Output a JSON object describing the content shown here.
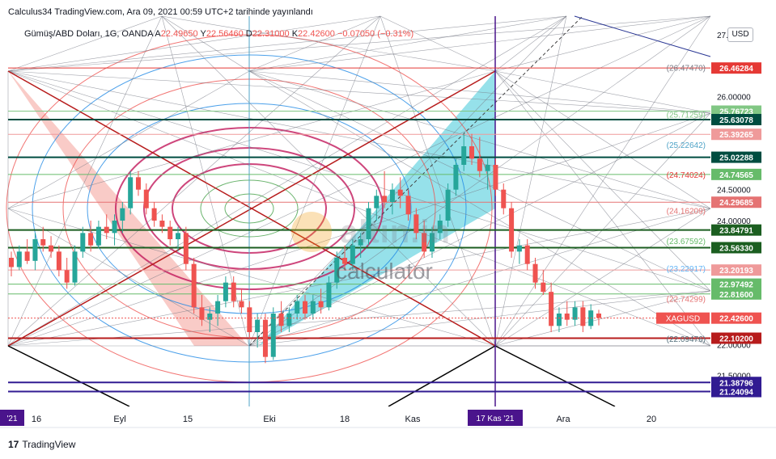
{
  "header": {
    "published": "Calculus34 TradingView.com, Ara 09, 2021 00:59 UTC+2 tarihinde yayınlandı"
  },
  "symbol_bar": {
    "name": "Gümüş/ABD Doları, 1G, OANDA",
    "a_label": "A",
    "a_value": "22.49650",
    "y_label": "Y",
    "y_value": "22.56460",
    "d_label": "D",
    "d_value": "22.31000",
    "k_label": "K",
    "k_value": "22.42600",
    "change": "−0.07050 (−0.31%)"
  },
  "currency_button": "USD",
  "watermark": {
    "brand": "altın.in",
    "sub": "calculator"
  },
  "footer": {
    "brand": "TradingView",
    "logo": "17"
  },
  "colors": {
    "up": "#26a69a",
    "down": "#ef5350",
    "purple": "#4a148c",
    "teal_fill": "#2ec4d6",
    "red_fill": "#f28b82"
  },
  "chart_data": {
    "type": "candlestick",
    "ylim": [
      21.0,
      27.3
    ],
    "y_ticks": [
      "27.00000",
      "26.00000",
      "24.50000",
      "24.00000",
      "22.00000",
      "21.50000"
    ],
    "x_ticks": [
      "16",
      "Eyl",
      "15",
      "Eki",
      "18",
      "Kas",
      "Ara",
      "20"
    ],
    "x_highlight_left": "'21",
    "x_highlight": "17 Kas '21",
    "current": {
      "label": "XAGUSD",
      "value": "22.42600"
    },
    "price_labels": [
      {
        "value": "26.46284",
        "color": "#e53935"
      },
      {
        "value": "25.76723",
        "color": "#81c784"
      },
      {
        "value": "25.63078",
        "color": "#004d40"
      },
      {
        "value": "25.39265",
        "color": "#ef9a9a"
      },
      {
        "value": "25.02288",
        "color": "#004d40"
      },
      {
        "value": "24.74565",
        "color": "#66bb6a"
      },
      {
        "value": "24.29685",
        "color": "#e57373"
      },
      {
        "value": "23.84791",
        "color": "#1b5e20"
      },
      {
        "value": "23.56330",
        "color": "#1b5e20"
      },
      {
        "value": "23.20193",
        "color": "#ef9a9a"
      },
      {
        "value": "22.97492",
        "color": "#66bb6a"
      },
      {
        "value": "22.81600",
        "color": "#66bb6a"
      },
      {
        "value": "22.10200",
        "color": "#b71c1c"
      },
      {
        "value": "21.38796",
        "color": "#311b92"
      },
      {
        "value": "21.24094",
        "color": "#311b92"
      }
    ],
    "fib_labels": [
      {
        "value": "(26.47470)",
        "color": "#787b86"
      },
      {
        "value": "(25.71259)",
        "color": "#81c784"
      },
      {
        "value": "(25.22642)",
        "color": "#4fa3c7"
      },
      {
        "value": "(24.74024)",
        "color": "#e53935"
      },
      {
        "value": "(24.16209)",
        "color": "#e57373"
      },
      {
        "value": "(23.67592)",
        "color": "#66bb6a"
      },
      {
        "value": "(23.22917)",
        "color": "#64b5f6"
      },
      {
        "value": "(22.74299)",
        "color": "#e57373"
      },
      {
        "value": "(22.09476)",
        "color": "#546e7a"
      }
    ],
    "candles": [
      [
        23.4,
        23.5,
        23.1,
        23.25
      ],
      [
        23.25,
        23.6,
        23.2,
        23.5
      ],
      [
        23.5,
        23.7,
        23.3,
        23.35
      ],
      [
        23.35,
        23.8,
        23.2,
        23.7
      ],
      [
        23.7,
        23.9,
        23.5,
        23.6
      ],
      [
        23.6,
        23.75,
        23.4,
        23.5
      ],
      [
        23.5,
        23.6,
        23.1,
        23.2
      ],
      [
        23.2,
        23.4,
        22.9,
        23.0
      ],
      [
        23.0,
        23.6,
        22.95,
        23.5
      ],
      [
        23.5,
        23.9,
        23.4,
        23.8
      ],
      [
        23.8,
        24.0,
        23.5,
        23.6
      ],
      [
        23.6,
        24.0,
        23.55,
        23.9
      ],
      [
        23.9,
        24.1,
        23.7,
        23.8
      ],
      [
        23.8,
        24.1,
        23.6,
        24.0
      ],
      [
        24.0,
        24.3,
        23.8,
        24.2
      ],
      [
        24.2,
        24.8,
        24.1,
        24.7
      ],
      [
        24.7,
        24.8,
        24.4,
        24.5
      ],
      [
        24.5,
        24.6,
        24.1,
        24.2
      ],
      [
        24.2,
        24.3,
        23.9,
        24.0
      ],
      [
        24.0,
        24.1,
        23.8,
        23.9
      ],
      [
        23.9,
        24.0,
        23.6,
        23.7
      ],
      [
        23.7,
        23.9,
        23.5,
        23.8
      ],
      [
        23.8,
        23.9,
        23.2,
        23.3
      ],
      [
        23.3,
        23.4,
        22.5,
        22.6
      ],
      [
        22.6,
        22.8,
        22.3,
        22.4
      ],
      [
        22.4,
        22.6,
        22.2,
        22.5
      ],
      [
        22.5,
        22.8,
        22.3,
        22.7
      ],
      [
        22.7,
        23.1,
        22.6,
        23.0
      ],
      [
        23.0,
        23.1,
        22.6,
        22.7
      ],
      [
        22.7,
        22.9,
        22.5,
        22.6
      ],
      [
        22.6,
        22.7,
        22.1,
        22.2
      ],
      [
        22.2,
        22.5,
        21.95,
        22.4
      ],
      [
        22.4,
        22.5,
        21.7,
        21.8
      ],
      [
        21.8,
        22.6,
        21.75,
        22.5
      ],
      [
        22.5,
        22.7,
        22.2,
        22.3
      ],
      [
        22.3,
        22.6,
        22.2,
        22.5
      ],
      [
        22.5,
        22.8,
        22.4,
        22.7
      ],
      [
        22.7,
        22.8,
        22.4,
        22.5
      ],
      [
        22.5,
        22.8,
        22.4,
        22.7
      ],
      [
        22.7,
        22.9,
        22.5,
        22.6
      ],
      [
        22.6,
        23.1,
        22.55,
        23.0
      ],
      [
        23.0,
        23.5,
        22.9,
        23.4
      ],
      [
        23.4,
        23.6,
        23.2,
        23.3
      ],
      [
        23.3,
        23.7,
        23.2,
        23.6
      ],
      [
        23.6,
        23.8,
        23.4,
        23.7
      ],
      [
        23.7,
        24.3,
        23.6,
        24.2
      ],
      [
        24.2,
        24.5,
        24.0,
        24.4
      ],
      [
        24.4,
        24.8,
        24.2,
        24.3
      ],
      [
        24.3,
        24.6,
        24.1,
        24.5
      ],
      [
        24.5,
        24.7,
        24.2,
        24.4
      ],
      [
        24.4,
        24.5,
        24.0,
        24.1
      ],
      [
        24.1,
        24.2,
        23.7,
        23.8
      ],
      [
        23.8,
        24.0,
        23.4,
        23.5
      ],
      [
        23.5,
        23.9,
        23.4,
        23.8
      ],
      [
        23.8,
        24.1,
        23.7,
        24.0
      ],
      [
        24.0,
        24.6,
        23.9,
        24.5
      ],
      [
        24.5,
        25.0,
        24.4,
        24.9
      ],
      [
        24.9,
        25.4,
        24.8,
        25.2
      ],
      [
        25.2,
        25.4,
        24.9,
        25.0
      ],
      [
        25.0,
        25.35,
        24.7,
        24.8
      ],
      [
        24.8,
        25.0,
        24.5,
        24.9
      ],
      [
        24.9,
        25.0,
        24.4,
        24.5
      ],
      [
        24.5,
        24.6,
        24.1,
        24.2
      ],
      [
        24.2,
        24.3,
        23.4,
        23.5
      ],
      [
        23.5,
        23.7,
        23.3,
        23.6
      ],
      [
        23.6,
        23.7,
        23.2,
        23.3
      ],
      [
        23.3,
        23.4,
        22.9,
        23.0
      ],
      [
        23.0,
        23.2,
        22.8,
        22.85
      ],
      [
        22.85,
        23.0,
        22.2,
        22.3
      ],
      [
        22.3,
        22.6,
        22.2,
        22.5
      ],
      [
        22.5,
        22.7,
        22.3,
        22.4
      ],
      [
        22.4,
        22.7,
        22.3,
        22.6
      ],
      [
        22.6,
        22.7,
        22.2,
        22.3
      ],
      [
        22.3,
        22.65,
        22.25,
        22.55
      ],
      [
        22.5,
        22.56,
        22.31,
        22.43
      ]
    ]
  }
}
